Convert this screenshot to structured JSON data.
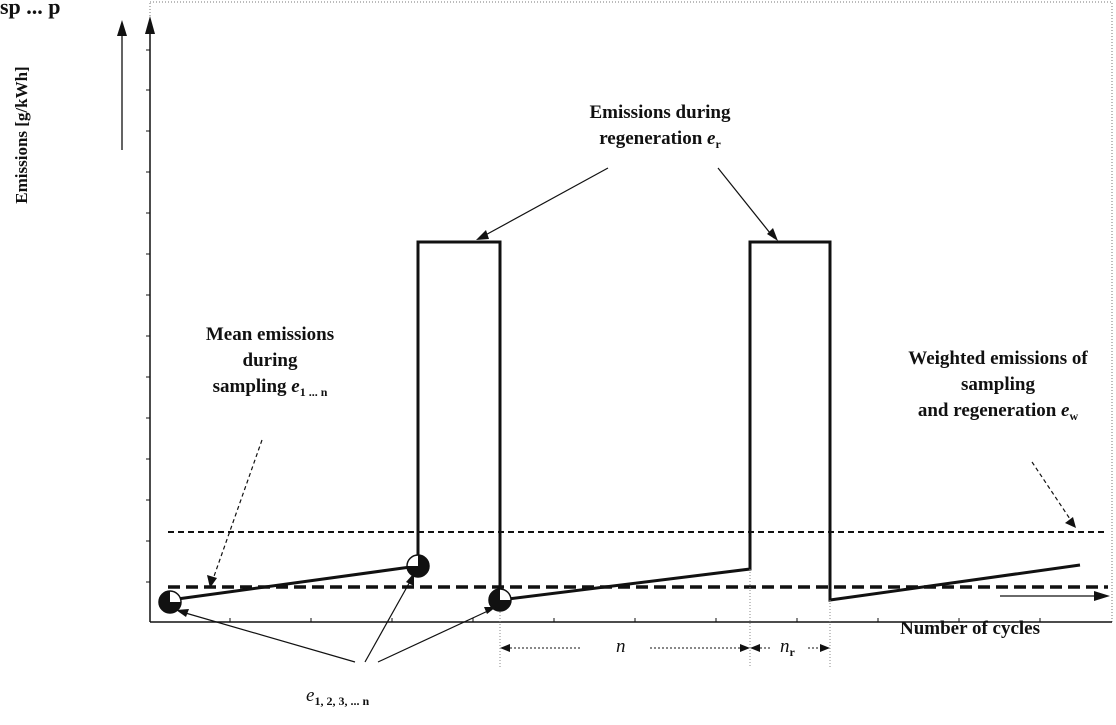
{
  "caption": "sp ... p",
  "y_axis_label": "Emissions [g/kWh]",
  "x_axis_label": "Number of cycles",
  "labels": {
    "regen_line1": "Emissions during",
    "regen_line2": "regeneration",
    "regen_symbol": "e",
    "regen_sub": "r",
    "mean_line1": "Mean emissions",
    "mean_line2": "during",
    "mean_line3": "sampling",
    "mean_symbol": "e",
    "mean_sub": "1 ... n",
    "weighted_line1": "Weighted emissions of",
    "weighted_line2": "sampling",
    "weighted_line3": "and regeneration",
    "weighted_symbol": "e",
    "weighted_sub": "w",
    "points_symbol": "e",
    "points_sub": "1, 2, 3, ... n",
    "n_label": "n",
    "nr_label": "n",
    "nr_sub": "r"
  },
  "colors": {
    "line": "#111111",
    "dotted": "#555555"
  }
}
